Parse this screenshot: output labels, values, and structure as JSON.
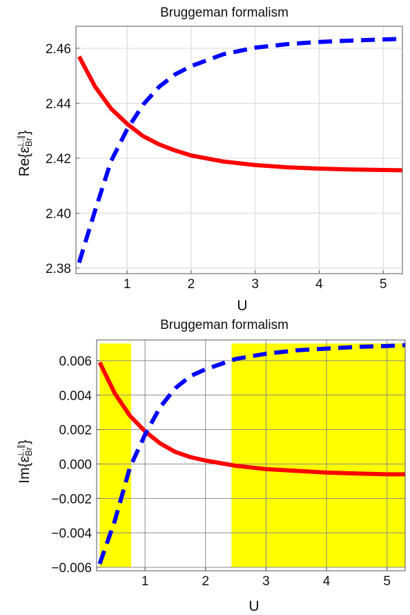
{
  "chart_data": [
    {
      "type": "line",
      "title": "Bruggeman formalism",
      "xlabel": "U",
      "ylabel": {
        "prefix": "Re{ε",
        "sub": "Br",
        "sup": "⊥,∥",
        "suffix": "}"
      },
      "xlim": [
        0.2,
        5.3
      ],
      "ylim": [
        2.378,
        2.468
      ],
      "xticks": [
        1,
        2,
        3,
        4,
        5
      ],
      "xtick_labels": [
        "1",
        "2",
        "3",
        "4",
        "5"
      ],
      "yticks": [
        2.38,
        2.4,
        2.42,
        2.44,
        2.46
      ],
      "ytick_labels": [
        "2.38",
        "2.40",
        "2.42",
        "2.44",
        "2.46"
      ],
      "grid": true,
      "shaded_regions": [],
      "series": [
        {
          "color": "#ff0000",
          "style": "solid",
          "x": [
            0.25,
            0.5,
            0.75,
            1.0,
            1.25,
            1.5,
            1.75,
            2.0,
            2.5,
            3.0,
            3.5,
            4.0,
            4.5,
            5.0,
            5.3
          ],
          "y": [
            2.457,
            2.446,
            2.438,
            2.4325,
            2.428,
            2.425,
            2.4228,
            2.421,
            2.4188,
            2.4175,
            2.4167,
            2.4162,
            2.4159,
            2.4157,
            2.4156
          ]
        },
        {
          "color": "#0000ff",
          "style": "dashed",
          "x": [
            0.25,
            0.5,
            0.75,
            1.0,
            1.25,
            1.5,
            1.75,
            2.0,
            2.5,
            3.0,
            3.5,
            4.0,
            4.5,
            5.0,
            5.3
          ],
          "y": [
            2.382,
            2.401,
            2.419,
            2.4305,
            2.4395,
            2.446,
            2.4505,
            2.4535,
            2.4578,
            2.4602,
            2.4615,
            2.4623,
            2.4628,
            2.4632,
            2.4634
          ]
        }
      ]
    },
    {
      "type": "line",
      "title": "Bruggeman formalism",
      "xlabel": "U",
      "ylabel": {
        "prefix": "Im{ε",
        "sub": "Br",
        "sup": "⊥,∥",
        "suffix": "}"
      },
      "xlim": [
        0.2,
        5.3
      ],
      "ylim": [
        -0.0062,
        0.0072
      ],
      "xticks": [
        1,
        2,
        3,
        4,
        5
      ],
      "xtick_labels": [
        "1",
        "2",
        "3",
        "4",
        "5"
      ],
      "yticks": [
        -0.006,
        -0.004,
        -0.002,
        0.0,
        0.002,
        0.004,
        0.006
      ],
      "ytick_labels": [
        "−0.006",
        "−0.004",
        "−0.002",
        "0.000",
        "0.002",
        "0.004",
        "0.006"
      ],
      "grid": true,
      "shaded_regions": [
        {
          "x": [
            0.25,
            0.77
          ],
          "y": [
            -0.006,
            0.007
          ],
          "color": "#ffff00"
        },
        {
          "x": [
            2.43,
            5.3
          ],
          "y": [
            -0.006,
            0.007
          ],
          "color": "#ffff00"
        }
      ],
      "series": [
        {
          "color": "#ff0000",
          "style": "solid",
          "x": [
            0.25,
            0.5,
            0.75,
            1.0,
            1.25,
            1.5,
            1.75,
            2.0,
            2.5,
            3.0,
            3.5,
            4.0,
            4.5,
            5.0,
            5.3
          ],
          "y": [
            0.0059,
            0.0041,
            0.0028,
            0.0019,
            0.0012,
            0.0007,
            0.0004,
            0.0002,
            -0.0001,
            -0.0003,
            -0.0004,
            -0.0005,
            -0.00055,
            -0.0006,
            -0.0006
          ]
        },
        {
          "color": "#0000ff",
          "style": "dashed",
          "x": [
            0.25,
            0.5,
            0.75,
            1.0,
            1.25,
            1.5,
            1.75,
            2.0,
            2.5,
            3.0,
            3.5,
            4.0,
            4.5,
            5.0,
            5.3
          ],
          "y": [
            -0.0058,
            -0.0033,
            -0.0002,
            0.0017,
            0.0033,
            0.0044,
            0.0051,
            0.0055,
            0.0061,
            0.0064,
            0.0066,
            0.0067,
            0.0068,
            0.00685,
            0.0069
          ]
        }
      ]
    }
  ]
}
